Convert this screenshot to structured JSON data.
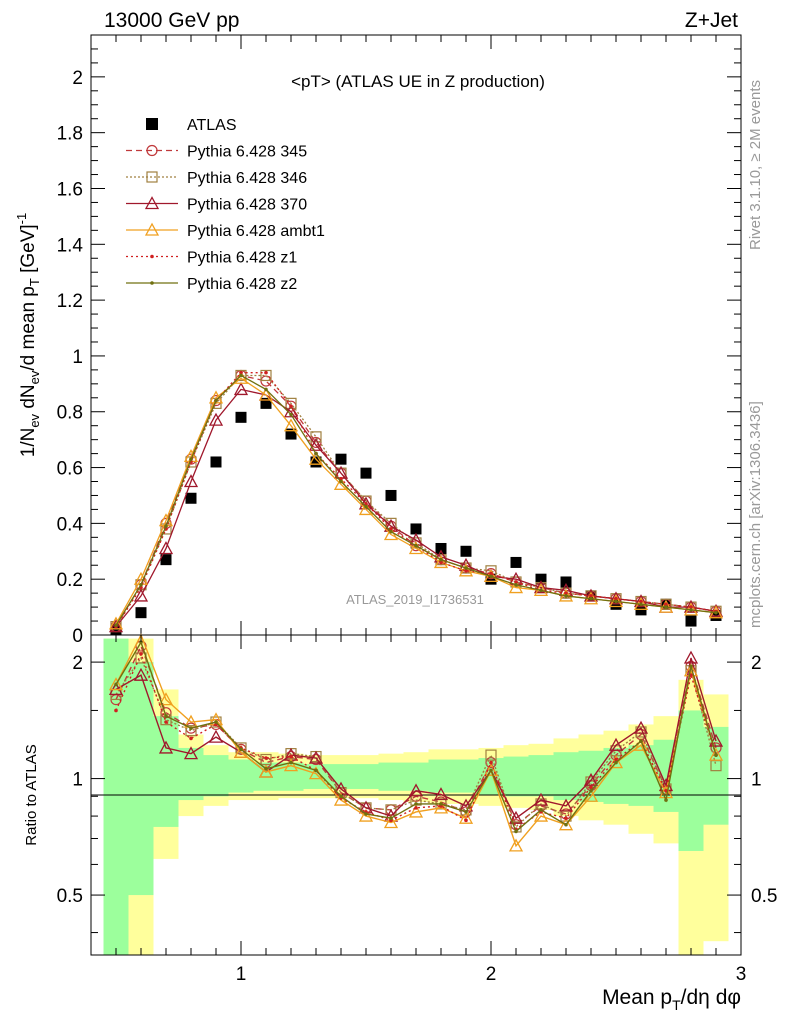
{
  "header": {
    "left": "13000 GeV pp",
    "right": "Z+Jet"
  },
  "side_labels": {
    "rivet": "Rivet 3.1.10, ≥ 2M events",
    "mcplots": "mcplots.cern.ch [arXiv:1306.3436]"
  },
  "colors": {
    "atlas": "#000000",
    "p345": "#c0393b",
    "p346": "#a08040",
    "p370": "#a0182c",
    "ambt1": "#f0a020",
    "z1": "#d02020",
    "z2": "#707010",
    "band_inner": "#9cff9c",
    "band_outer": "#ffff9c"
  },
  "chart_data": [
    {
      "type": "scatter",
      "title": "<pT> (ATLAS UE in Z production)",
      "watermark": "ATLAS_2019_I1736531",
      "ylabel": "1/N_ev dN_ev/d mean p_T [GeV]^-1",
      "xlim": [
        0.4,
        3.0
      ],
      "ylim": [
        0,
        2.15
      ],
      "yticks": [
        0,
        0.2,
        0.4,
        0.6,
        0.8,
        1,
        1.2,
        1.4,
        1.6,
        1.8,
        2
      ],
      "ytick_labels": [
        "0",
        "0.2",
        "0.4",
        "0.6",
        "0.8",
        "1",
        "1.2",
        "1.4",
        "1.6",
        "1.8",
        "2"
      ],
      "x": [
        0.5,
        0.6,
        0.7,
        0.8,
        0.9,
        1.0,
        1.1,
        1.2,
        1.3,
        1.4,
        1.5,
        1.6,
        1.7,
        1.8,
        1.9,
        2.0,
        2.1,
        2.2,
        2.3,
        2.4,
        2.5,
        2.6,
        2.7,
        2.8,
        2.9
      ],
      "legend_position": "top-left",
      "series": [
        {
          "name": "ATLAS",
          "style": "data",
          "values": [
            0.02,
            0.08,
            0.27,
            0.49,
            0.62,
            0.78,
            0.83,
            0.72,
            0.62,
            0.63,
            0.58,
            0.5,
            0.38,
            0.31,
            0.3,
            0.2,
            0.26,
            0.2,
            0.19,
            0.14,
            0.11,
            0.09,
            0.11,
            0.05,
            0.07
          ]
        },
        {
          "name": "Pythia 6.428 345",
          "style": "circle-dashed",
          "values": [
            0.03,
            0.18,
            0.4,
            0.63,
            0.84,
            0.93,
            0.91,
            0.82,
            0.69,
            0.58,
            0.48,
            0.39,
            0.32,
            0.27,
            0.24,
            0.22,
            0.19,
            0.17,
            0.15,
            0.14,
            0.13,
            0.12,
            0.11,
            0.1,
            0.085
          ]
        },
        {
          "name": "Pythia 6.428 346",
          "style": "square-dotted",
          "values": [
            0.03,
            0.18,
            0.38,
            0.62,
            0.83,
            0.93,
            0.93,
            0.83,
            0.71,
            0.58,
            0.48,
            0.4,
            0.33,
            0.27,
            0.24,
            0.23,
            0.19,
            0.17,
            0.15,
            0.14,
            0.13,
            0.12,
            0.11,
            0.1,
            0.085
          ]
        },
        {
          "name": "Pythia 6.428 370",
          "style": "triangle-solid",
          "values": [
            0.03,
            0.14,
            0.31,
            0.55,
            0.77,
            0.88,
            0.86,
            0.8,
            0.68,
            0.58,
            0.47,
            0.39,
            0.34,
            0.28,
            0.25,
            0.21,
            0.2,
            0.17,
            0.16,
            0.14,
            0.13,
            0.12,
            0.1,
            0.1,
            0.085
          ]
        },
        {
          "name": "Pythia 6.428 ambt1",
          "style": "triangle-solid",
          "values": [
            0.04,
            0.2,
            0.41,
            0.64,
            0.85,
            0.92,
            0.86,
            0.75,
            0.63,
            0.54,
            0.45,
            0.36,
            0.31,
            0.26,
            0.23,
            0.21,
            0.17,
            0.16,
            0.14,
            0.13,
            0.12,
            0.11,
            0.1,
            0.09,
            0.08
          ]
        },
        {
          "name": "Pythia 6.428 z1",
          "style": "dot-dotted",
          "values": [
            0.03,
            0.17,
            0.38,
            0.62,
            0.84,
            0.94,
            0.94,
            0.82,
            0.65,
            0.56,
            0.47,
            0.38,
            0.32,
            0.26,
            0.23,
            0.22,
            0.19,
            0.16,
            0.15,
            0.14,
            0.13,
            0.12,
            0.11,
            0.1,
            0.085
          ]
        },
        {
          "name": "Pythia 6.428 z2",
          "style": "dot-solid",
          "values": [
            0.035,
            0.18,
            0.39,
            0.63,
            0.84,
            0.93,
            0.88,
            0.79,
            0.65,
            0.55,
            0.46,
            0.37,
            0.32,
            0.27,
            0.24,
            0.21,
            0.18,
            0.16,
            0.14,
            0.13,
            0.12,
            0.11,
            0.1,
            0.09,
            0.08
          ]
        }
      ]
    },
    {
      "type": "line",
      "ylabel": "Ratio to ATLAS",
      "xlabel": "Mean p_T/dη dφ",
      "xlim": [
        0.4,
        3.0
      ],
      "ylim": [
        0.35,
        2.35
      ],
      "log_y": true,
      "reference": 1,
      "xticks": [
        1,
        2,
        3
      ],
      "xtick_labels": [
        "1",
        "2",
        "3"
      ],
      "yticks": [
        0.5,
        1,
        2
      ],
      "ytick_labels": [
        "0.5",
        "1",
        "2"
      ],
      "x": [
        0.5,
        0.6,
        0.7,
        0.8,
        0.9,
        1.0,
        1.1,
        1.2,
        1.3,
        1.4,
        1.5,
        1.6,
        1.7,
        1.8,
        1.9,
        2.0,
        2.1,
        2.2,
        2.3,
        2.4,
        2.5,
        2.6,
        2.7,
        2.8,
        2.9
      ],
      "band_inner": [
        [
          0.35,
          2.3
        ],
        [
          0.5,
          2.0
        ],
        [
          0.75,
          1.45
        ],
        [
          0.88,
          1.2
        ],
        [
          0.9,
          1.15
        ],
        [
          0.92,
          1.12
        ],
        [
          0.93,
          1.1
        ],
        [
          0.93,
          1.1
        ],
        [
          0.94,
          1.09
        ],
        [
          0.94,
          1.09
        ],
        [
          0.94,
          1.09
        ],
        [
          0.93,
          1.1
        ],
        [
          0.93,
          1.1
        ],
        [
          0.92,
          1.12
        ],
        [
          0.92,
          1.12
        ],
        [
          0.91,
          1.13
        ],
        [
          0.9,
          1.14
        ],
        [
          0.9,
          1.15
        ],
        [
          0.88,
          1.17
        ],
        [
          0.87,
          1.18
        ],
        [
          0.86,
          1.2
        ],
        [
          0.85,
          1.22
        ],
        [
          0.82,
          1.26
        ],
        [
          0.65,
          1.5
        ],
        [
          0.76,
          1.36
        ]
      ],
      "band_outer": [
        [
          0.35,
          2.3
        ],
        [
          0.35,
          2.3
        ],
        [
          0.62,
          1.7
        ],
        [
          0.8,
          1.3
        ],
        [
          0.85,
          1.22
        ],
        [
          0.88,
          1.17
        ],
        [
          0.88,
          1.17
        ],
        [
          0.89,
          1.16
        ],
        [
          0.89,
          1.15
        ],
        [
          0.89,
          1.15
        ],
        [
          0.89,
          1.15
        ],
        [
          0.88,
          1.16
        ],
        [
          0.87,
          1.17
        ],
        [
          0.86,
          1.19
        ],
        [
          0.86,
          1.19
        ],
        [
          0.85,
          1.2
        ],
        [
          0.84,
          1.22
        ],
        [
          0.83,
          1.23
        ],
        [
          0.8,
          1.27
        ],
        [
          0.78,
          1.3
        ],
        [
          0.76,
          1.33
        ],
        [
          0.72,
          1.38
        ],
        [
          0.68,
          1.45
        ],
        [
          0.35,
          1.8
        ],
        [
          0.38,
          1.65
        ]
      ],
      "series": [
        {
          "name": "Pythia 6.428 345",
          "style": "circle-dashed",
          "values": [
            1.6,
            2.2,
            1.48,
            1.35,
            1.38,
            1.19,
            1.1,
            1.14,
            1.12,
            0.92,
            0.84,
            0.83,
            0.9,
            0.87,
            0.82,
            1.1,
            0.76,
            0.85,
            0.81,
            0.96,
            1.15,
            1.3,
            0.94,
            1.95,
            1.2
          ]
        },
        {
          "name": "Pythia 6.428 346",
          "style": "square-dotted",
          "values": [
            1.65,
            2.05,
            1.42,
            1.33,
            1.4,
            1.2,
            1.12,
            1.16,
            1.14,
            0.92,
            0.84,
            0.83,
            0.88,
            0.86,
            0.83,
            1.15,
            0.75,
            0.86,
            0.8,
            0.98,
            1.18,
            1.32,
            0.94,
            1.9,
            1.08
          ]
        },
        {
          "name": "Pythia 6.428 370",
          "style": "triangle-solid",
          "values": [
            1.7,
            1.85,
            1.2,
            1.16,
            1.28,
            1.17,
            1.04,
            1.15,
            1.13,
            0.94,
            0.84,
            0.8,
            0.93,
            0.91,
            0.85,
            1.05,
            0.79,
            0.88,
            0.85,
            0.99,
            1.22,
            1.35,
            0.96,
            2.05,
            1.25
          ]
        },
        {
          "name": "Pythia 6.428 ambt1",
          "style": "triangle-solid",
          "values": [
            1.75,
            2.4,
            1.6,
            1.4,
            1.42,
            1.17,
            1.04,
            1.08,
            1.03,
            0.88,
            0.8,
            0.77,
            0.82,
            0.84,
            0.79,
            1.05,
            0.67,
            0.8,
            0.76,
            0.9,
            1.1,
            1.22,
            0.92,
            1.9,
            1.15
          ]
        },
        {
          "name": "Pythia 6.428 z1",
          "style": "dot-dotted",
          "values": [
            1.5,
            2.1,
            1.4,
            1.27,
            1.38,
            1.2,
            1.13,
            1.14,
            1.05,
            0.89,
            0.82,
            0.78,
            0.84,
            0.85,
            0.78,
            1.1,
            0.74,
            0.82,
            0.79,
            0.95,
            1.12,
            1.25,
            0.93,
            1.85,
            1.15
          ]
        },
        {
          "name": "Pythia 6.428 z2",
          "style": "dot-solid",
          "values": [
            1.75,
            2.25,
            1.45,
            1.35,
            1.4,
            1.19,
            1.06,
            1.1,
            1.05,
            0.9,
            0.81,
            0.79,
            0.86,
            0.86,
            0.82,
            1.05,
            0.73,
            0.83,
            0.76,
            0.93,
            1.1,
            1.25,
            0.88,
            1.95,
            1.15
          ]
        }
      ]
    }
  ]
}
